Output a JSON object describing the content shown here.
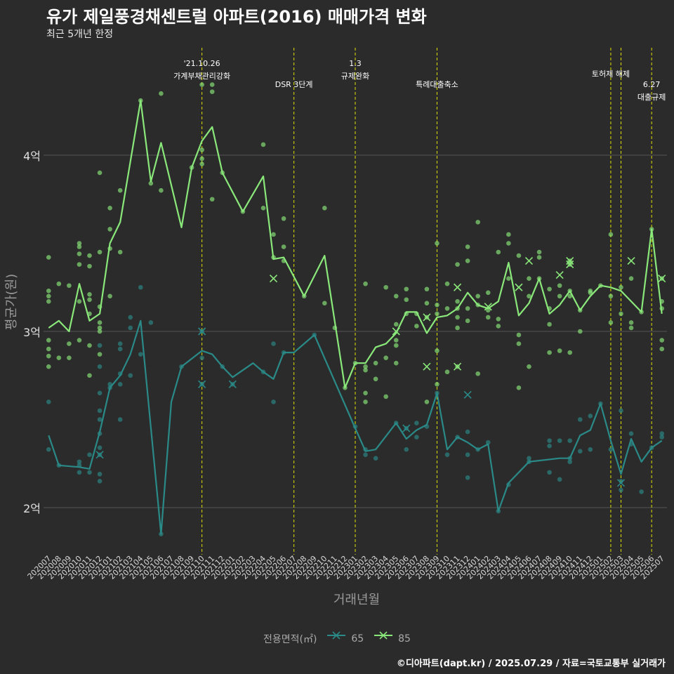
{
  "chart_data": {
    "type": "line",
    "title": "유가 제일풍경채센트럴 아파트(2016) 매매가격 변화",
    "subtitle": "최근 5개년 한정",
    "xlabel": "거래년월",
    "ylabel": "평균가(원)",
    "y_unit": "억",
    "ylim": [
      1.75,
      4.6
    ],
    "yticks": [
      {
        "value": 2,
        "label": "2억"
      },
      {
        "value": 3,
        "label": "3억"
      },
      {
        "value": 4,
        "label": "4억"
      }
    ],
    "categories": [
      "202007",
      "202008",
      "202009",
      "202010",
      "202011",
      "202012",
      "202101",
      "202102",
      "202103",
      "202104",
      "202105",
      "202106",
      "202107",
      "202108",
      "202109",
      "202110",
      "202111",
      "202112",
      "202201",
      "202202",
      "202203",
      "202204",
      "202205",
      "202206",
      "202207",
      "202208",
      "202209",
      "202210",
      "202211",
      "202212",
      "202301",
      "202302",
      "202303",
      "202304",
      "202305",
      "202306",
      "202307",
      "202308",
      "202309",
      "202310",
      "202311",
      "202312",
      "202401",
      "202402",
      "202403",
      "202404",
      "202405",
      "202406",
      "202407",
      "202408",
      "202409",
      "202410",
      "202411",
      "202412",
      "202501",
      "202502",
      "202503",
      "202504",
      "202505",
      "202506",
      "202507"
    ],
    "legend": {
      "title": "전용면적(㎡)",
      "placement": "bottom"
    },
    "series": [
      {
        "name": "65",
        "color": "#2a8a88",
        "values": [
          2.41,
          2.24,
          null,
          2.23,
          2.22,
          2.43,
          2.68,
          2.75,
          2.87,
          3.06,
          null,
          1.85,
          2.6,
          2.8,
          null,
          2.89,
          2.87,
          2.8,
          2.74,
          null,
          2.82,
          2.77,
          2.73,
          2.88,
          2.88,
          null,
          2.98,
          null,
          null,
          null,
          2.45,
          2.32,
          2.33,
          null,
          2.48,
          2.39,
          2.44,
          2.47,
          2.65,
          2.33,
          2.4,
          2.37,
          2.33,
          2.36,
          1.98,
          2.14,
          null,
          2.26,
          null,
          null,
          2.28,
          2.28,
          2.41,
          2.44,
          2.59,
          2.38,
          2.19,
          2.39,
          2.26,
          2.34,
          2.38
        ]
      },
      {
        "name": "85",
        "color": "#8ae87a",
        "values": [
          3.02,
          3.06,
          3.0,
          3.27,
          3.06,
          3.1,
          3.5,
          3.62,
          null,
          4.31,
          3.85,
          4.07,
          null,
          3.59,
          3.93,
          4.08,
          4.16,
          3.9,
          null,
          3.68,
          null,
          3.88,
          3.41,
          3.42,
          null,
          3.2,
          null,
          3.43,
          null,
          2.68,
          2.82,
          2.82,
          2.91,
          2.93,
          2.99,
          3.11,
          3.11,
          2.99,
          3.08,
          3.09,
          3.13,
          3.22,
          3.15,
          3.13,
          3.17,
          3.39,
          3.09,
          3.16,
          3.3,
          3.1,
          3.15,
          3.23,
          3.12,
          3.2,
          3.26,
          3.25,
          3.23,
          null,
          3.11,
          3.58,
          3.1
        ]
      }
    ],
    "annotations": [
      {
        "x": "202110",
        "lines": [
          "'21.10.26",
          "가계부채관리강화"
        ],
        "row": 0
      },
      {
        "x": "202207",
        "lines": [
          "DSR 3단계"
        ],
        "row": 1
      },
      {
        "x": "202301",
        "lines": [
          "1.3",
          "규제완화"
        ],
        "row": 0
      },
      {
        "x": "202309",
        "lines": [
          "특례대출축소"
        ],
        "row": 1
      },
      {
        "x": "202502",
        "lines": [
          "토허제 해제"
        ],
        "row": 0.5
      },
      {
        "x": "202503",
        "lines": [],
        "row": 0
      },
      {
        "x": "202506",
        "lines": [
          "6.27",
          "대출규제"
        ],
        "row": 1
      }
    ],
    "annotation_line_color": "#e0e000",
    "scatter_points": {
      "65": [
        [
          0,
          2.6
        ],
        [
          0,
          2.33
        ],
        [
          1,
          2.24
        ],
        [
          3,
          2.26
        ],
        [
          3,
          2.24
        ],
        [
          3,
          2.2
        ],
        [
          4,
          2.3
        ],
        [
          4,
          2.2
        ],
        [
          5,
          2.42
        ],
        [
          5,
          2.55
        ],
        [
          5,
          2.34
        ],
        [
          5,
          2.3
        ],
        [
          5,
          2.15
        ],
        [
          5,
          2.19
        ],
        [
          5,
          2.5
        ],
        [
          5,
          2.65
        ],
        [
          5,
          2.8
        ],
        [
          5,
          2.92
        ],
        [
          6,
          2.68
        ],
        [
          6,
          2.7
        ],
        [
          7,
          2.5
        ],
        [
          7,
          2.76
        ],
        [
          7,
          2.7
        ],
        [
          7,
          2.9
        ],
        [
          7,
          2.93
        ],
        [
          8,
          2.75
        ],
        [
          8,
          3.02
        ],
        [
          8,
          3.08
        ],
        [
          9,
          3.25
        ],
        [
          9,
          2.87
        ],
        [
          10,
          3.05
        ],
        [
          11,
          1.85
        ],
        [
          13,
          2.8
        ],
        [
          15,
          2.7
        ],
        [
          15,
          3.0
        ],
        [
          15,
          2.85
        ],
        [
          17,
          2.8
        ],
        [
          18,
          2.7
        ],
        [
          21,
          2.77
        ],
        [
          22,
          2.93
        ],
        [
          22,
          2.6
        ],
        [
          23,
          2.88
        ],
        [
          26,
          2.98
        ],
        [
          30,
          2.46
        ],
        [
          31,
          2.33
        ],
        [
          31,
          2.3
        ],
        [
          32,
          2.28
        ],
        [
          34,
          2.48
        ],
        [
          35,
          2.33
        ],
        [
          35,
          2.45
        ],
        [
          36,
          2.4
        ],
        [
          36,
          2.48
        ],
        [
          37,
          2.46
        ],
        [
          38,
          2.65
        ],
        [
          39,
          2.3
        ],
        [
          40,
          2.4
        ],
        [
          41,
          2.43
        ],
        [
          41,
          2.3
        ],
        [
          41,
          2.17
        ],
        [
          42,
          2.33
        ],
        [
          43,
          2.37
        ],
        [
          44,
          1.98
        ],
        [
          45,
          2.13
        ],
        [
          47,
          2.26
        ],
        [
          47,
          2.28
        ],
        [
          49,
          2.2
        ],
        [
          49,
          2.35
        ],
        [
          49,
          2.38
        ],
        [
          50,
          2.16
        ],
        [
          50,
          2.38
        ],
        [
          51,
          2.28
        ],
        [
          51,
          2.26
        ],
        [
          51,
          2.38
        ],
        [
          52,
          2.32
        ],
        [
          52,
          2.5
        ],
        [
          53,
          2.52
        ],
        [
          53,
          2.33
        ],
        [
          54,
          2.59
        ],
        [
          55,
          2.33
        ],
        [
          56,
          2.1
        ],
        [
          56,
          2.15
        ],
        [
          56,
          2.55
        ],
        [
          57,
          2.36
        ],
        [
          57,
          2.42
        ],
        [
          58,
          2.09
        ],
        [
          59,
          2.34
        ],
        [
          60,
          2.4
        ],
        [
          60,
          2.42
        ]
      ],
      "85": [
        [
          0,
          3.42
        ],
        [
          0,
          3.23
        ],
        [
          0,
          3.2
        ],
        [
          0,
          3.17
        ],
        [
          0,
          2.95
        ],
        [
          0,
          2.9
        ],
        [
          0,
          2.86
        ],
        [
          0,
          2.8
        ],
        [
          1,
          2.85
        ],
        [
          1,
          3.27
        ],
        [
          2,
          2.85
        ],
        [
          2,
          2.93
        ],
        [
          2,
          3.26
        ],
        [
          3,
          3.5
        ],
        [
          3,
          3.48
        ],
        [
          3,
          3.44
        ],
        [
          3,
          3.38
        ],
        [
          3,
          3.17
        ],
        [
          3,
          2.95
        ],
        [
          4,
          3.43
        ],
        [
          4,
          3.37
        ],
        [
          4,
          3.21
        ],
        [
          4,
          3.18
        ],
        [
          4,
          3.1
        ],
        [
          4,
          2.92
        ],
        [
          4,
          2.75
        ],
        [
          5,
          3.9
        ],
        [
          5,
          3.45
        ],
        [
          5,
          3.14
        ],
        [
          5,
          3.05
        ],
        [
          5,
          3.02
        ],
        [
          5,
          3.0
        ],
        [
          5,
          2.87
        ],
        [
          6,
          3.7
        ],
        [
          6,
          3.58
        ],
        [
          6,
          3.47
        ],
        [
          6,
          3.2
        ],
        [
          7,
          3.8
        ],
        [
          7,
          3.45
        ],
        [
          9,
          4.31
        ],
        [
          10,
          3.84
        ],
        [
          11,
          4.35
        ],
        [
          11,
          3.8
        ],
        [
          14,
          3.93
        ],
        [
          15,
          4.4
        ],
        [
          15,
          4.03
        ],
        [
          15,
          3.98
        ],
        [
          15,
          3.95
        ],
        [
          16,
          4.4
        ],
        [
          16,
          4.36
        ],
        [
          16,
          3.75
        ],
        [
          17,
          3.9
        ],
        [
          19,
          3.68
        ],
        [
          21,
          4.06
        ],
        [
          21,
          3.7
        ],
        [
          22,
          3.55
        ],
        [
          22,
          3.42
        ],
        [
          23,
          3.64
        ],
        [
          23,
          3.48
        ],
        [
          23,
          3.4
        ],
        [
          25,
          3.2
        ],
        [
          27,
          3.7
        ],
        [
          27,
          3.16
        ],
        [
          28,
          3.02
        ],
        [
          29,
          2.68
        ],
        [
          30,
          2.82
        ],
        [
          31,
          3.27
        ],
        [
          31,
          2.8
        ],
        [
          31,
          2.78
        ],
        [
          31,
          2.65
        ],
        [
          31,
          2.6
        ],
        [
          32,
          2.82
        ],
        [
          32,
          2.73
        ],
        [
          33,
          3.25
        ],
        [
          33,
          2.85
        ],
        [
          33,
          2.63
        ],
        [
          34,
          3.2
        ],
        [
          34,
          3.04
        ],
        [
          34,
          2.95
        ],
        [
          34,
          2.92
        ],
        [
          34,
          2.82
        ],
        [
          35,
          3.24
        ],
        [
          35,
          3.18
        ],
        [
          35,
          3.1
        ],
        [
          36,
          3.1
        ],
        [
          36,
          3.03
        ],
        [
          37,
          3.24
        ],
        [
          37,
          3.16
        ],
        [
          37,
          3.08
        ],
        [
          37,
          2.6
        ],
        [
          38,
          3.5
        ],
        [
          38,
          3.15
        ],
        [
          38,
          3.1
        ],
        [
          38,
          2.89
        ],
        [
          38,
          2.7
        ],
        [
          39,
          3.27
        ],
        [
          39,
          3.13
        ],
        [
          39,
          2.77
        ],
        [
          40,
          3.38
        ],
        [
          40,
          3.17
        ],
        [
          40,
          3.13
        ],
        [
          40,
          3.08
        ],
        [
          40,
          3.02
        ],
        [
          40,
          2.8
        ],
        [
          41,
          3.48
        ],
        [
          41,
          3.4
        ],
        [
          41,
          3.13
        ],
        [
          41,
          3.06
        ],
        [
          42,
          3.62
        ],
        [
          42,
          3.2
        ],
        [
          42,
          3.15
        ],
        [
          42,
          2.76
        ],
        [
          43,
          3.22
        ],
        [
          43,
          3.12
        ],
        [
          43,
          3.08
        ],
        [
          44,
          3.45
        ],
        [
          44,
          3.07
        ],
        [
          44,
          3.03
        ],
        [
          45,
          3.55
        ],
        [
          45,
          3.5
        ],
        [
          45,
          3.3
        ],
        [
          46,
          3.43
        ],
        [
          46,
          2.98
        ],
        [
          46,
          2.93
        ],
        [
          46,
          2.68
        ],
        [
          47,
          3.3
        ],
        [
          47,
          3.2
        ],
        [
          47,
          2.8
        ],
        [
          48,
          3.45
        ],
        [
          48,
          3.42
        ],
        [
          48,
          3.3
        ],
        [
          49,
          3.24
        ],
        [
          49,
          3.13
        ],
        [
          49,
          3.04
        ],
        [
          49,
          2.88
        ],
        [
          50,
          3.26
        ],
        [
          50,
          3.2
        ],
        [
          50,
          2.89
        ],
        [
          51,
          3.4
        ],
        [
          51,
          3.38
        ],
        [
          51,
          3.23
        ],
        [
          51,
          3.2
        ],
        [
          51,
          2.88
        ],
        [
          52,
          3.12
        ],
        [
          52,
          3.0
        ],
        [
          53,
          3.23
        ],
        [
          53,
          3.22
        ],
        [
          54,
          3.26
        ],
        [
          55,
          3.55
        ],
        [
          55,
          3.2
        ],
        [
          55,
          3.05
        ],
        [
          56,
          3.25
        ],
        [
          56,
          3.1
        ],
        [
          57,
          3.3
        ],
        [
          57,
          3.05
        ],
        [
          57,
          3.02
        ],
        [
          58,
          3.11
        ],
        [
          59,
          3.58
        ],
        [
          60,
          3.3
        ],
        [
          60,
          3.17
        ],
        [
          60,
          3.13
        ],
        [
          60,
          2.95
        ],
        [
          60,
          2.9
        ]
      ]
    },
    "cross_points": {
      "65": [
        [
          5,
          2.3
        ],
        [
          15,
          3.0
        ],
        [
          15,
          2.7
        ],
        [
          18,
          2.7
        ],
        [
          35,
          2.45
        ],
        [
          41,
          2.64
        ],
        [
          56,
          2.14
        ]
      ],
      "85": [
        [
          22,
          3.3
        ],
        [
          34,
          3.0
        ],
        [
          37,
          2.8
        ],
        [
          37,
          3.08
        ],
        [
          40,
          2.8
        ],
        [
          40,
          3.25
        ],
        [
          43,
          3.14
        ],
        [
          46,
          3.25
        ],
        [
          47,
          3.4
        ],
        [
          50,
          3.32
        ],
        [
          51,
          3.38
        ],
        [
          51,
          3.4
        ],
        [
          57,
          3.4
        ],
        [
          60,
          3.3
        ]
      ]
    }
  },
  "caption": "©디아파트(dapt.kr) / 2025.07.29 / 자료=국토교통부 실거래가"
}
